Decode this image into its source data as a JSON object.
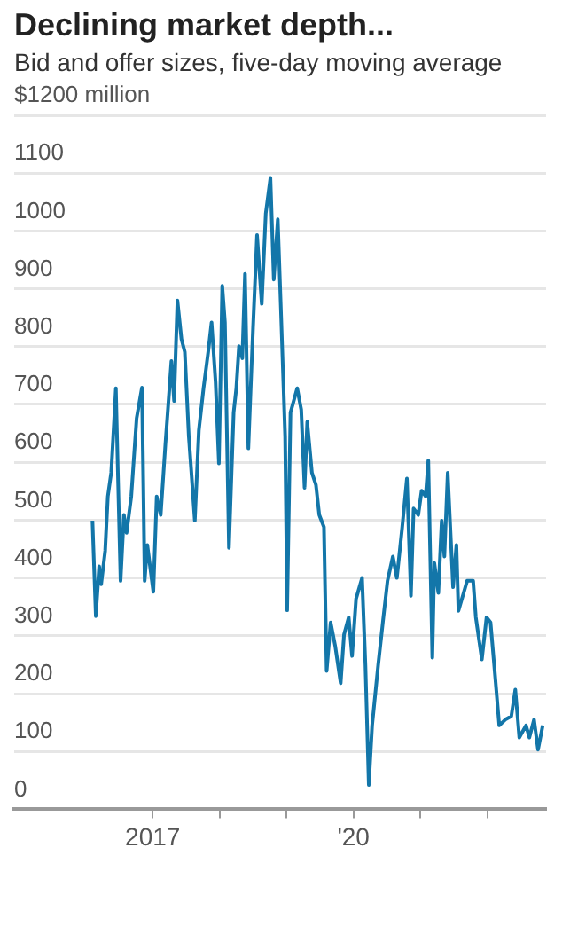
{
  "chart_data": {
    "type": "line",
    "title": "Declining market depth...",
    "subtitle": "Bid and offer sizes, five-day moving average",
    "x": [
      2016.1,
      2016.15,
      2016.2,
      2016.23,
      2016.29,
      2016.33,
      2016.38,
      2016.45,
      2016.48,
      2016.52,
      2016.57,
      2016.61,
      2016.68,
      2016.76,
      2016.84,
      2016.88,
      2016.92,
      2017.01,
      2017.06,
      2017.12,
      2017.19,
      2017.28,
      2017.32,
      2017.37,
      2017.43,
      2017.48,
      2017.54,
      2017.63,
      2017.69,
      2017.76,
      2017.83,
      2017.88,
      2017.94,
      2017.99,
      2018.04,
      2018.08,
      2018.14,
      2018.21,
      2018.25,
      2018.29,
      2018.34,
      2018.38,
      2018.43,
      2018.5,
      2018.56,
      2018.63,
      2018.69,
      2018.76,
      2018.81,
      2018.87,
      2018.92,
      2018.98,
      2019.01,
      2019.06,
      2019.16,
      2019.22,
      2019.27,
      2019.31,
      2019.38,
      2019.44,
      2019.49,
      2019.56,
      2019.6,
      2019.66,
      2019.73,
      2019.81,
      2019.86,
      2019.93,
      2019.98,
      2020.04,
      2020.13,
      2020.18,
      2020.23,
      2020.28,
      2020.37,
      2020.44,
      2020.51,
      2020.59,
      2020.65,
      2020.73,
      2020.8,
      2020.86,
      2020.9,
      2020.97,
      2021.02,
      2021.08,
      2021.12,
      2021.18,
      2021.21,
      2021.27,
      2021.32,
      2021.36,
      2021.41,
      2021.49,
      2021.54,
      2021.57,
      2021.7,
      2021.79,
      2021.83,
      2021.92,
      2021.99,
      2022.05,
      2022.12,
      2022.18,
      2022.27,
      2022.36,
      2022.42,
      2022.48,
      2022.58,
      2022.63,
      2022.7,
      2022.76,
      2022.83
    ],
    "series": [
      {
        "color": "#1376a9",
        "values": [
          499,
          334,
          420,
          389,
          447,
          541,
          582,
          728,
          582,
          395,
          509,
          478,
          541,
          676,
          729,
          395,
          457,
          376,
          541,
          509,
          631,
          775,
          706,
          880,
          813,
          791,
          645,
          499,
          655,
          728,
          791,
          842,
          739,
          598,
          905,
          842,
          452,
          686,
          728,
          801,
          780,
          926,
          624,
          832,
          993,
          874,
          1030,
          1092,
          916,
          1020,
          853,
          645,
          344,
          686,
          728,
          691,
          556,
          670,
          582,
          561,
          509,
          488,
          239,
          323,
          281,
          218,
          302,
          332,
          265,
          364,
          400,
          249,
          42,
          145,
          249,
          323,
          395,
          437,
          400,
          488,
          572,
          369,
          520,
          509,
          551,
          541,
          603,
          262,
          426,
          374,
          499,
          437,
          582,
          384,
          457,
          343,
          395,
          395,
          332,
          259,
          332,
          323,
          228,
          145,
          155,
          161,
          207,
          124,
          145,
          124,
          155,
          103,
          145
        ]
      }
    ],
    "xlim": [
      2014.93,
      2022.88
    ],
    "xticks": [
      {
        "value": 2017,
        "label": "2017"
      },
      {
        "value": 2018,
        "label": null
      },
      {
        "value": 2019,
        "label": null
      },
      {
        "value": 2020,
        "label": "'20"
      },
      {
        "value": 2021,
        "label": null
      },
      {
        "value": 2022,
        "label": null
      }
    ],
    "ylim": [
      0,
      1200
    ],
    "yticks": [
      0,
      100,
      200,
      300,
      400,
      500,
      600,
      700,
      800,
      900,
      1000,
      1100,
      {
        "value": 1200,
        "label": "$1200 million"
      }
    ],
    "grid": "y",
    "legend": false,
    "marker": "none",
    "line_style": "solid"
  }
}
